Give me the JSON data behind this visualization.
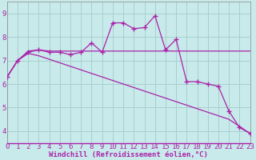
{
  "background_color": "#c8eaea",
  "grid_color": "#a8cece",
  "line_color": "#aa22aa",
  "xlabel": "Windchill (Refroidissement éolien,°C)",
  "xlim": [
    0,
    23
  ],
  "ylim": [
    3.5,
    9.5
  ],
  "yticks": [
    4,
    5,
    6,
    7,
    8,
    9
  ],
  "xticks": [
    0,
    1,
    2,
    3,
    4,
    5,
    6,
    7,
    8,
    9,
    10,
    11,
    12,
    13,
    14,
    15,
    16,
    17,
    18,
    19,
    20,
    21,
    22,
    23
  ],
  "line1_x": [
    0,
    1,
    2,
    3,
    4,
    5,
    6,
    7,
    8,
    9,
    10,
    11,
    12,
    13,
    14,
    15,
    16,
    17,
    18,
    19,
    20,
    21,
    22,
    23
  ],
  "line1_y": [
    6.3,
    7.0,
    7.35,
    7.45,
    7.35,
    7.35,
    7.25,
    7.35,
    7.75,
    7.35,
    8.6,
    8.6,
    8.35,
    8.4,
    8.9,
    7.45,
    7.9,
    6.1,
    6.1,
    6.0,
    5.9,
    4.85,
    4.15,
    3.9
  ],
  "line2_x": [
    0,
    1,
    2,
    3,
    4,
    5,
    6,
    7,
    8,
    9,
    10,
    11,
    12,
    13,
    14,
    15,
    16,
    17,
    18,
    19,
    20,
    21,
    22,
    23
  ],
  "line2_y": [
    6.3,
    7.0,
    7.4,
    7.45,
    7.4,
    7.4,
    7.4,
    7.4,
    7.4,
    7.4,
    7.4,
    7.4,
    7.4,
    7.4,
    7.4,
    7.4,
    7.4,
    7.4,
    7.4,
    7.4,
    7.4,
    7.4,
    7.4,
    7.4
  ],
  "line3_x": [
    0,
    1,
    2,
    3,
    4,
    5,
    6,
    7,
    8,
    9,
    10,
    11,
    12,
    13,
    14,
    15,
    16,
    17,
    18,
    19,
    20,
    21,
    22,
    23
  ],
  "line3_y": [
    6.3,
    7.0,
    7.3,
    7.2,
    7.05,
    6.9,
    6.75,
    6.6,
    6.45,
    6.3,
    6.15,
    6.0,
    5.85,
    5.7,
    5.55,
    5.4,
    5.25,
    5.1,
    4.95,
    4.8,
    4.65,
    4.5,
    4.2,
    3.9
  ],
  "text_color": "#aa22aa",
  "xlabel_fontsize": 6.5,
  "tick_fontsize": 6.5,
  "figsize": [
    3.2,
    2.0
  ],
  "dpi": 100
}
